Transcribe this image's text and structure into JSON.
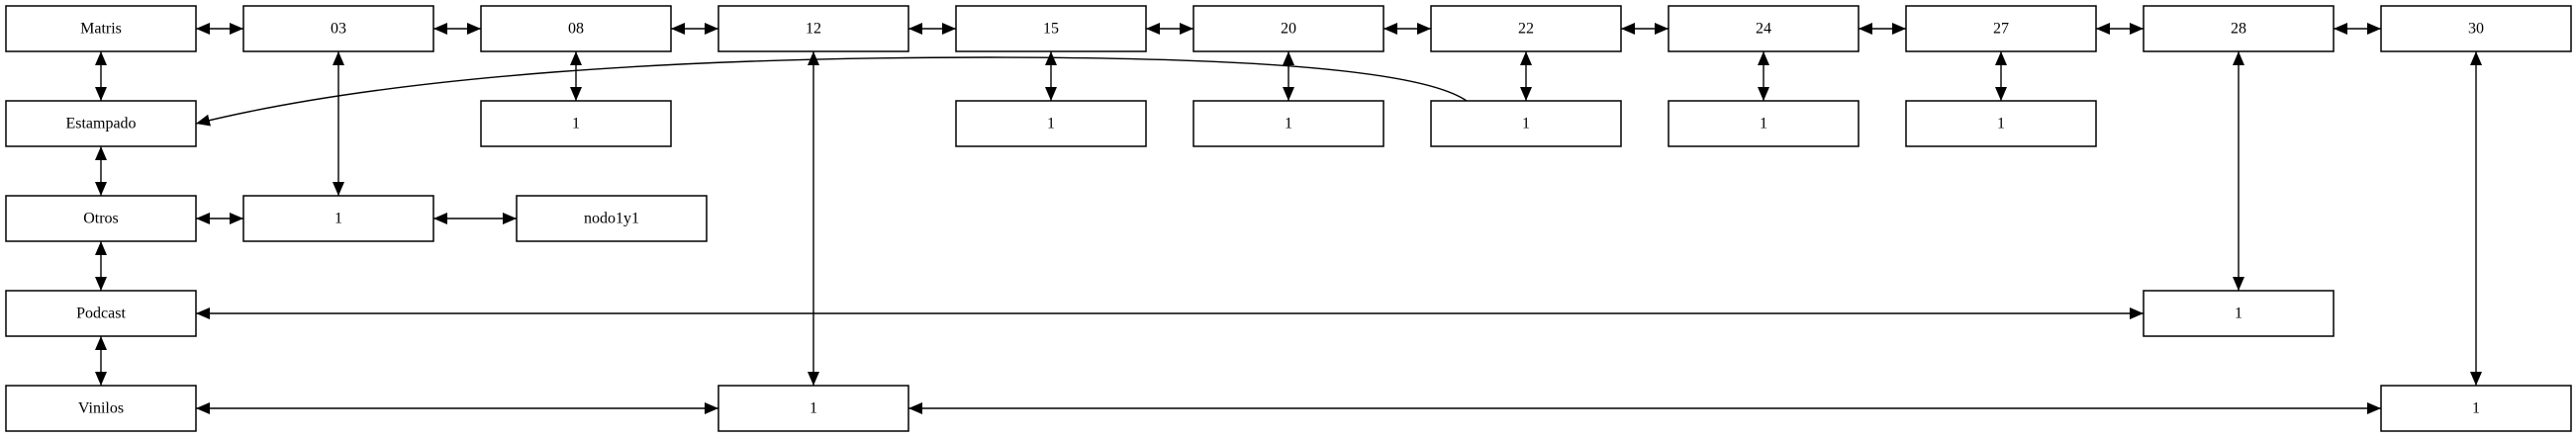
{
  "diagram": {
    "type": "linked-list-matrix",
    "nodes": [
      {
        "id": "matris",
        "label": "Matris"
      },
      {
        "id": "c03",
        "label": "03"
      },
      {
        "id": "c08",
        "label": "08"
      },
      {
        "id": "c12",
        "label": "12"
      },
      {
        "id": "c15",
        "label": "15"
      },
      {
        "id": "c20",
        "label": "20"
      },
      {
        "id": "c22",
        "label": "22"
      },
      {
        "id": "c24",
        "label": "24"
      },
      {
        "id": "c27",
        "label": "27"
      },
      {
        "id": "c28",
        "label": "28"
      },
      {
        "id": "c30",
        "label": "30"
      },
      {
        "id": "estampado",
        "label": "Estampado"
      },
      {
        "id": "otros",
        "label": "Otros"
      },
      {
        "id": "podcast",
        "label": "Podcast"
      },
      {
        "id": "vinilos",
        "label": "Vinilos"
      },
      {
        "id": "v08",
        "label": "1"
      },
      {
        "id": "v15",
        "label": "1"
      },
      {
        "id": "v20",
        "label": "1"
      },
      {
        "id": "v22",
        "label": "1"
      },
      {
        "id": "v24",
        "label": "1"
      },
      {
        "id": "v27",
        "label": "1"
      },
      {
        "id": "v03",
        "label": "1"
      },
      {
        "id": "nodo1y1",
        "label": "nodo1y1"
      },
      {
        "id": "v28",
        "label": "1"
      },
      {
        "id": "v12",
        "label": "1"
      },
      {
        "id": "v30",
        "label": "1"
      }
    ],
    "edges": [
      {
        "from": "matris",
        "to": "c03",
        "direction": "both"
      },
      {
        "from": "c03",
        "to": "c08",
        "direction": "both"
      },
      {
        "from": "c08",
        "to": "c12",
        "direction": "both"
      },
      {
        "from": "c12",
        "to": "c15",
        "direction": "both"
      },
      {
        "from": "c15",
        "to": "c20",
        "direction": "both"
      },
      {
        "from": "c20",
        "to": "c22",
        "direction": "both"
      },
      {
        "from": "c22",
        "to": "c24",
        "direction": "both"
      },
      {
        "from": "c24",
        "to": "c27",
        "direction": "both"
      },
      {
        "from": "c27",
        "to": "c28",
        "direction": "both"
      },
      {
        "from": "c28",
        "to": "c30",
        "direction": "both"
      },
      {
        "from": "matris",
        "to": "estampado",
        "direction": "both"
      },
      {
        "from": "estampado",
        "to": "otros",
        "direction": "both"
      },
      {
        "from": "otros",
        "to": "podcast",
        "direction": "both"
      },
      {
        "from": "podcast",
        "to": "vinilos",
        "direction": "both"
      },
      {
        "from": "c08",
        "to": "v08",
        "direction": "both"
      },
      {
        "from": "c15",
        "to": "v15",
        "direction": "both"
      },
      {
        "from": "c20",
        "to": "v20",
        "direction": "both"
      },
      {
        "from": "c22",
        "to": "v22",
        "direction": "both"
      },
      {
        "from": "c24",
        "to": "v24",
        "direction": "both"
      },
      {
        "from": "c27",
        "to": "v27",
        "direction": "both"
      },
      {
        "from": "c03",
        "to": "v03",
        "direction": "both"
      },
      {
        "from": "c12",
        "to": "v12",
        "direction": "both"
      },
      {
        "from": "c28",
        "to": "v28",
        "direction": "both"
      },
      {
        "from": "c30",
        "to": "v30",
        "direction": "both"
      },
      {
        "from": "otros",
        "to": "v03",
        "direction": "both"
      },
      {
        "from": "v03",
        "to": "nodo1y1",
        "direction": "both"
      },
      {
        "from": "podcast",
        "to": "v28",
        "direction": "both"
      },
      {
        "from": "vinilos",
        "to": "v12",
        "direction": "both"
      },
      {
        "from": "v12",
        "to": "v30",
        "direction": "both"
      },
      {
        "from": "v22",
        "to": "estampado",
        "direction": "forward"
      }
    ]
  }
}
